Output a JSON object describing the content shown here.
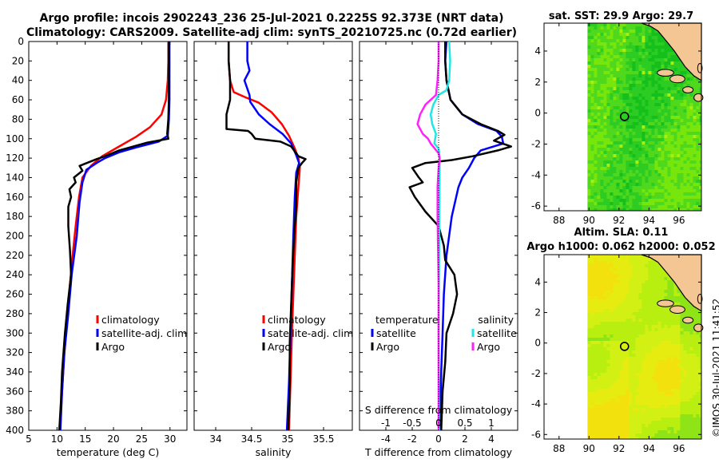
{
  "title_line1": "Argo profile: incois 2902243_236 25-Jul-2021 0.2225S 92.373E (NRT data)",
  "title_line2": "Climatology: CARS2009. Satellite-adj clim: synTS_20210725.nc (0.72d earlier)",
  "credit": "©IMOS 30-Jul-2021 11:41:52",
  "colors": {
    "climatology": "#ff0000",
    "satellite": "#0000ff",
    "argo": "#000000",
    "sat_salinity": "#22e5e5",
    "argo_salinity": "#ff22ff"
  },
  "chart_data": [
    {
      "id": "temperature",
      "type": "line",
      "xlabel": "temperature (deg C)",
      "xlim": [
        5,
        33
      ],
      "ylim": [
        0,
        400
      ],
      "xticks": [
        5,
        10,
        15,
        20,
        25,
        30
      ],
      "yticks": [
        0,
        20,
        40,
        60,
        80,
        100,
        120,
        140,
        160,
        180,
        200,
        220,
        240,
        260,
        280,
        300,
        320,
        340,
        360,
        380,
        400
      ],
      "legend": [
        "climatology",
        "satellite-adj. clim",
        "Argo"
      ],
      "series": [
        {
          "name": "climatology",
          "color": "climatology",
          "points": [
            [
              29.7,
              0
            ],
            [
              29.7,
              20
            ],
            [
              29.6,
              40
            ],
            [
              29.3,
              60
            ],
            [
              28.5,
              75
            ],
            [
              26.5,
              88
            ],
            [
              24,
              98
            ],
            [
              21,
              108
            ],
            [
              18,
              118
            ],
            [
              16,
              128
            ],
            [
              14.5,
              140
            ],
            [
              13.9,
              160
            ],
            [
              13.3,
              190
            ],
            [
              12.6,
              230
            ],
            [
              12,
              270
            ],
            [
              11.3,
              320
            ],
            [
              10.9,
              360
            ],
            [
              10.5,
              400
            ]
          ]
        },
        {
          "name": "satellite-adj. clim",
          "color": "satellite",
          "points": [
            [
              29.9,
              0
            ],
            [
              29.9,
              20
            ],
            [
              29.9,
              40
            ],
            [
              29.9,
              60
            ],
            [
              29.8,
              80
            ],
            [
              29.6,
              97
            ],
            [
              28,
              103
            ],
            [
              24,
              109
            ],
            [
              21,
              114
            ],
            [
              18.5,
              120
            ],
            [
              17,
              125
            ],
            [
              15.2,
              132
            ],
            [
              14.5,
              145
            ],
            [
              14,
              165
            ],
            [
              13.5,
              200
            ],
            [
              12.6,
              240
            ],
            [
              12,
              280
            ],
            [
              11.3,
              320
            ],
            [
              10.9,
              360
            ],
            [
              10.6,
              400
            ]
          ]
        },
        {
          "name": "Argo",
          "color": "argo",
          "points": [
            [
              29.8,
              0
            ],
            [
              29.8,
              20
            ],
            [
              29.8,
              40
            ],
            [
              29.8,
              60
            ],
            [
              29.7,
              80
            ],
            [
              29.5,
              95
            ],
            [
              29.7,
              100
            ],
            [
              26,
              104
            ],
            [
              21,
              112
            ],
            [
              18.5,
              118
            ],
            [
              17,
              121
            ],
            [
              14,
              128
            ],
            [
              14.5,
              133
            ],
            [
              13,
              140
            ],
            [
              13.3,
              145
            ],
            [
              12.2,
              152
            ],
            [
              12.5,
              160
            ],
            [
              12,
              170
            ],
            [
              12,
              190
            ],
            [
              12.3,
              215
            ],
            [
              12.5,
              240
            ],
            [
              11.9,
              270
            ],
            [
              11.4,
              300
            ],
            [
              10.9,
              340
            ],
            [
              10.7,
              370
            ],
            [
              10.4,
              400
            ]
          ]
        }
      ]
    },
    {
      "id": "salinity",
      "type": "line",
      "xlabel": "salinity",
      "xlim": [
        33.7,
        35.9
      ],
      "ylim": [
        0,
        400
      ],
      "xticks": [
        34,
        34.5,
        35,
        35.5
      ],
      "legend": [
        "climatology",
        "satellite-adj. clim",
        "Argo"
      ],
      "series": [
        {
          "name": "climatology",
          "color": "climatology",
          "points": [
            [
              34.18,
              0
            ],
            [
              34.18,
              20
            ],
            [
              34.2,
              40
            ],
            [
              34.25,
              52
            ],
            [
              34.4,
              57
            ],
            [
              34.6,
              63
            ],
            [
              34.78,
              73
            ],
            [
              34.92,
              85
            ],
            [
              35.02,
              97
            ],
            [
              35.1,
              110
            ],
            [
              35.15,
              120
            ],
            [
              35.17,
              130
            ],
            [
              35.15,
              150
            ],
            [
              35.12,
              180
            ],
            [
              35.1,
              220
            ],
            [
              35.08,
              260
            ],
            [
              35.06,
              300
            ],
            [
              35.04,
              350
            ],
            [
              35.02,
              400
            ]
          ]
        },
        {
          "name": "satellite-adj. clim",
          "color": "satellite",
          "points": [
            [
              34.44,
              0
            ],
            [
              34.44,
              20
            ],
            [
              34.47,
              30
            ],
            [
              34.4,
              40
            ],
            [
              34.47,
              55
            ],
            [
              34.48,
              62
            ],
            [
              34.6,
              75
            ],
            [
              34.75,
              85
            ],
            [
              34.93,
              95
            ],
            [
              35.05,
              105
            ],
            [
              35.12,
              117
            ],
            [
              35.16,
              125
            ],
            [
              35.12,
              135
            ],
            [
              35.1,
              160
            ],
            [
              35.08,
              200
            ],
            [
              35.06,
              250
            ],
            [
              35.04,
              300
            ],
            [
              35.02,
              350
            ],
            [
              34.99,
              400
            ]
          ]
        },
        {
          "name": "Argo",
          "color": "argo",
          "points": [
            [
              34.18,
              0
            ],
            [
              34.18,
              20
            ],
            [
              34.2,
              40
            ],
            [
              34.2,
              60
            ],
            [
              34.15,
              75
            ],
            [
              34.15,
              90
            ],
            [
              34.45,
              92
            ],
            [
              34.5,
              95
            ],
            [
              34.55,
              100
            ],
            [
              34.9,
              103
            ],
            [
              35.05,
              108
            ],
            [
              35.15,
              118
            ],
            [
              35.25,
              121
            ],
            [
              35.2,
              125
            ],
            [
              35.15,
              130
            ],
            [
              35.12,
              145
            ],
            [
              35.12,
              170
            ],
            [
              35.09,
              200
            ],
            [
              35.07,
              230
            ],
            [
              35.05,
              270
            ],
            [
              35.03,
              310
            ],
            [
              35.03,
              350
            ],
            [
              35.01,
              400
            ]
          ]
        }
      ]
    },
    {
      "id": "difference",
      "type": "line",
      "xlabel": "T difference from climatology",
      "s_label": "S difference from climatology",
      "xlim": [
        -6,
        6
      ],
      "s_xlim": [
        -1.5,
        1.5
      ],
      "xticks": [
        -4,
        -2,
        0,
        2,
        4
      ],
      "s_xticks": [
        -1,
        -0.5,
        0,
        0.5,
        1
      ],
      "legend_temperature_title": "temperature",
      "legend_salinity_title": "salinity",
      "legend_temperature": [
        "satellite",
        "Argo"
      ],
      "legend_salinity": [
        "satellite",
        "Argo"
      ],
      "series": [
        {
          "name": "T satellite",
          "color": "satellite",
          "points": [
            [
              0.6,
              0
            ],
            [
              0.5,
              20
            ],
            [
              0.6,
              40
            ],
            [
              0.9,
              60
            ],
            [
              1.8,
              75
            ],
            [
              3,
              85
            ],
            [
              4.4,
              92
            ],
            [
              4.8,
              98
            ],
            [
              4.9,
              105
            ],
            [
              3.2,
              112
            ],
            [
              2.7,
              120
            ],
            [
              2.3,
              130
            ],
            [
              1.8,
              140
            ],
            [
              1.5,
              150
            ],
            [
              1,
              180
            ],
            [
              0.6,
              220
            ],
            [
              0.4,
              260
            ],
            [
              0.3,
              300
            ],
            [
              0.2,
              340
            ],
            [
              0.1,
              400
            ]
          ]
        },
        {
          "name": "T Argo",
          "color": "argo",
          "points": [
            [
              0.5,
              0
            ],
            [
              0.5,
              20
            ],
            [
              0.6,
              40
            ],
            [
              0.9,
              60
            ],
            [
              1.8,
              75
            ],
            [
              3.2,
              85
            ],
            [
              4.5,
              92
            ],
            [
              5,
              96
            ],
            [
              4.2,
              102
            ],
            [
              5.5,
              108
            ],
            [
              4.5,
              112
            ],
            [
              2.6,
              118
            ],
            [
              1,
              122
            ],
            [
              -1,
              125
            ],
            [
              -2,
              130
            ],
            [
              -1.5,
              140
            ],
            [
              -1.2,
              145
            ],
            [
              -2.2,
              150
            ],
            [
              -1.8,
              160
            ],
            [
              -1,
              175
            ],
            [
              0,
              190
            ],
            [
              0.4,
              210
            ],
            [
              0.5,
              225
            ],
            [
              1.2,
              240
            ],
            [
              1.4,
              260
            ],
            [
              1.1,
              280
            ],
            [
              0.6,
              300
            ],
            [
              0.5,
              330
            ],
            [
              0.3,
              360
            ],
            [
              0.2,
              400
            ]
          ]
        },
        {
          "name": "S satellite",
          "color": "sat_salinity",
          "points": [
            [
              0.2,
              0
            ],
            [
              0.22,
              20
            ],
            [
              0.2,
              40
            ],
            [
              0.15,
              50
            ],
            [
              0,
              55
            ],
            [
              -0.1,
              65
            ],
            [
              -0.15,
              75
            ],
            [
              -0.12,
              85
            ],
            [
              -0.05,
              95
            ],
            [
              -0.08,
              105
            ],
            [
              0,
              110
            ],
            [
              0.02,
              120
            ],
            [
              0.02,
              140
            ],
            [
              0.01,
              200
            ],
            [
              0,
              300
            ],
            [
              0.01,
              400
            ]
          ]
        },
        {
          "name": "S Argo",
          "color": "argo_salinity",
          "points": [
            [
              0,
              0
            ],
            [
              0,
              20
            ],
            [
              -0.02,
              40
            ],
            [
              -0.05,
              55
            ],
            [
              -0.25,
              65
            ],
            [
              -0.35,
              75
            ],
            [
              -0.4,
              85
            ],
            [
              -0.3,
              95
            ],
            [
              -0.2,
              100
            ],
            [
              -0.15,
              105
            ],
            [
              0,
              115
            ],
            [
              0.02,
              120
            ],
            [
              0,
              130
            ],
            [
              -0.02,
              150
            ],
            [
              -0.02,
              180
            ],
            [
              0,
              250
            ],
            [
              0,
              300
            ],
            [
              0,
              350
            ],
            [
              0,
              400
            ]
          ]
        }
      ]
    },
    {
      "id": "sst_map",
      "type": "heatmap",
      "title": "sat. SST: 29.9 Argo: 29.7",
      "xlim": [
        87,
        97.5
      ],
      "ylim": [
        -6.3,
        5.8
      ],
      "xticks": [
        88,
        90,
        92,
        94,
        96
      ],
      "yticks": [
        -6,
        -4,
        -2,
        0,
        2,
        4
      ],
      "argo_position": [
        92.37,
        -0.22
      ],
      "data_extent_lon": [
        89.9,
        97.5
      ]
    },
    {
      "id": "sla_map",
      "type": "heatmap",
      "title_line1": "Altim. SLA: 0.11",
      "title_line2": "Argo h1000: 0.062 h2000: 0.052",
      "xlim": [
        87,
        97.5
      ],
      "ylim": [
        -6.3,
        5.8
      ],
      "xticks": [
        88,
        90,
        92,
        94,
        96
      ],
      "yticks": [
        -6,
        -4,
        -2,
        0,
        2,
        4
      ],
      "argo_position": [
        92.37,
        -0.22
      ],
      "data_extent_lon": [
        89.9,
        97.5
      ]
    }
  ]
}
